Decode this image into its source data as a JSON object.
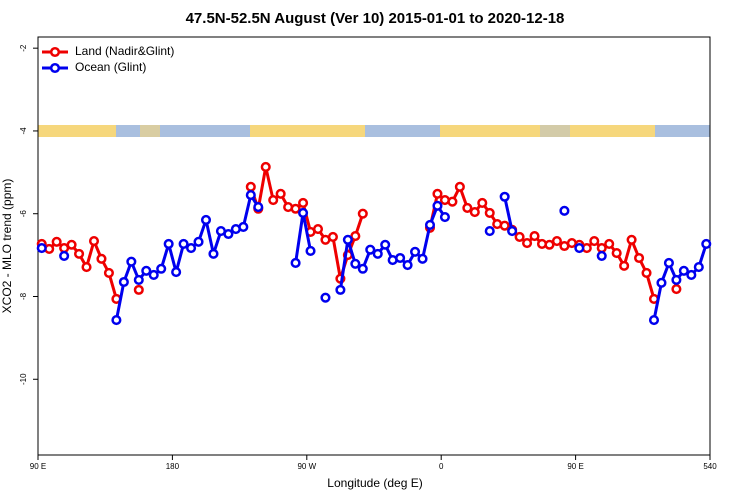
{
  "chart_data": {
    "type": "line",
    "title": "47.5N-52.5N August (Ver 10)   2015-01-01 to 2020-12-18",
    "x_label": "Longitude (deg E)",
    "y_label": "XCO2 - MLO trend (ppm)",
    "xlim": [
      90,
      540
    ],
    "ylim": [
      -11.83,
      -1.73
    ],
    "xticks": [
      {
        "value": 90,
        "label": "90 E"
      },
      180,
      {
        "value": 270,
        "label": "90 W"
      },
      {
        "value": 360,
        "label": "0"
      },
      {
        "value": 450,
        "label": "90 E"
      },
      540
    ],
    "yticks": [
      -2,
      -4,
      -6,
      -8,
      -10
    ],
    "grid": false,
    "legend": "top-left",
    "x": [
      92.5,
      97.5,
      102.5,
      107.5,
      112.5,
      117.5,
      122.5,
      127.5,
      132.5,
      137.5,
      142.5,
      147.5,
      152.5,
      157.5,
      162.5,
      167.5,
      172.5,
      177.5,
      182.5,
      187.5,
      192.5,
      197.5,
      202.5,
      207.5,
      212.5,
      217.5,
      222.5,
      227.5,
      232.5,
      237.5,
      242.5,
      247.5,
      252.5,
      257.5,
      262.5,
      267.5,
      272.5,
      277.5,
      282.5,
      287.5,
      292.5,
      297.5,
      302.5,
      307.5,
      312.5,
      317.5,
      322.5,
      327.5,
      332.5,
      337.5,
      342.5,
      347.5,
      352.5,
      357.5,
      362.5,
      367.5,
      372.5,
      377.5,
      382.5,
      387.5,
      392.5,
      397.5,
      402.5,
      407.5,
      412.5,
      417.5,
      422.5,
      427.5,
      432.5,
      437.5,
      442.5,
      447.5,
      452.5,
      457.5,
      462.5,
      467.5,
      472.5,
      477.5,
      482.5,
      487.5,
      492.5,
      497.5,
      502.5,
      507.5,
      512.5,
      517.5,
      522.5,
      527.5,
      532.5,
      537.5
    ],
    "series": [
      {
        "name": "Land (Nadir&Glint)",
        "color": "#ee0000",
        "values": [
          -6.73,
          -6.85,
          -6.68,
          -6.83,
          -6.75,
          -6.97,
          -7.29,
          -6.66,
          -7.09,
          -7.43,
          -8.06,
          null,
          null,
          -7.84,
          null,
          null,
          null,
          null,
          null,
          null,
          null,
          null,
          null,
          null,
          null,
          null,
          null,
          null,
          -5.35,
          -5.88,
          -4.87,
          -5.67,
          -5.52,
          -5.84,
          -5.88,
          -5.74,
          -6.44,
          -6.37,
          -6.63,
          -6.56,
          -7.57,
          -7.0,
          -6.54,
          -6.0,
          null,
          null,
          null,
          null,
          null,
          null,
          null,
          null,
          -6.34,
          -5.52,
          -5.67,
          -5.71,
          -5.35,
          -5.86,
          -5.96,
          -5.74,
          -5.98,
          -6.25,
          -6.29,
          -6.39,
          -6.56,
          -6.71,
          -6.54,
          -6.73,
          -6.75,
          -6.66,
          -6.78,
          -6.71,
          -6.75,
          -6.83,
          -6.66,
          -6.83,
          -6.73,
          -6.95,
          -7.26,
          -6.63,
          -7.07,
          -7.43,
          -8.06,
          null,
          null,
          -7.82,
          null,
          null,
          null,
          null
        ]
      },
      {
        "name": "Ocean (Glint)",
        "color": "#0000ee",
        "values": [
          -6.83,
          null,
          null,
          -7.02,
          null,
          null,
          null,
          null,
          null,
          null,
          -8.57,
          -7.65,
          -7.16,
          -7.6,
          -7.38,
          -7.48,
          -7.33,
          -6.73,
          -7.41,
          -6.73,
          -6.83,
          -6.68,
          -6.15,
          -6.97,
          -6.42,
          -6.49,
          -6.37,
          -6.32,
          -5.55,
          -5.84,
          null,
          null,
          null,
          null,
          -7.19,
          -5.98,
          -6.9,
          null,
          -8.03,
          null,
          -7.84,
          -6.63,
          -7.21,
          -7.33,
          -6.87,
          -6.97,
          -6.75,
          -7.12,
          -7.07,
          -7.24,
          -6.92,
          -7.09,
          -6.27,
          -5.81,
          -6.08,
          null,
          null,
          null,
          null,
          null,
          -6.42,
          null,
          -5.59,
          -6.42,
          null,
          null,
          null,
          null,
          null,
          null,
          -5.93,
          null,
          -6.83,
          null,
          null,
          -7.02,
          null,
          null,
          null,
          null,
          null,
          null,
          -8.57,
          -7.67,
          -7.19,
          -7.6,
          -7.38,
          -7.48,
          -7.29,
          -6.73
        ]
      }
    ]
  }
}
